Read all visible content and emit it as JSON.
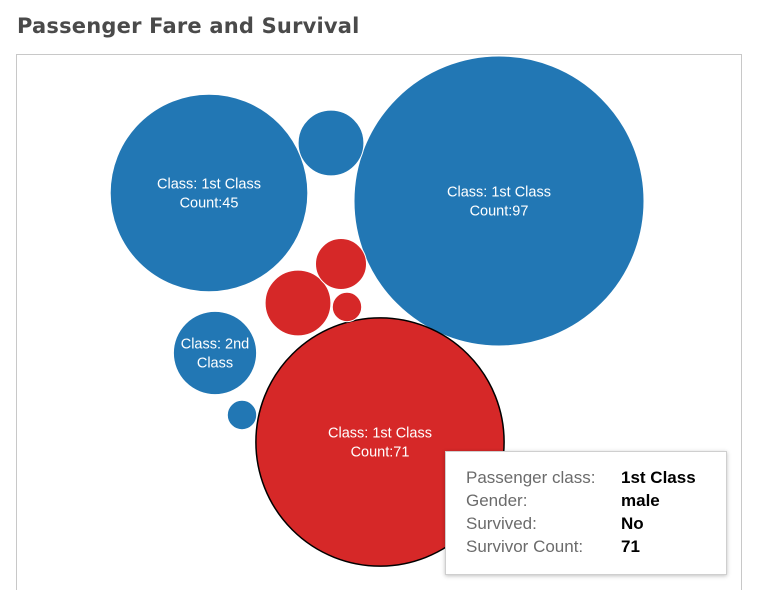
{
  "title": "Passenger Fare and Survival",
  "colors": {
    "blue": "#2277b4",
    "red": "#d62828",
    "highlight_stroke": "#000000"
  },
  "chart_data": {
    "type": "bubble",
    "title": "Passenger Fare and Survival",
    "color_legend": {
      "No": "#d62828",
      "Yes": "#2277b4"
    },
    "bubbles": [
      {
        "class": "1st Class",
        "survived": "Yes",
        "count": 97,
        "label": [
          "Class: 1st Class",
          "Count:97"
        ]
      },
      {
        "class": "1st Class",
        "survived": "No",
        "count": 71,
        "label": [
          "Class: 1st Class",
          "Count:71"
        ],
        "highlighted": true
      },
      {
        "class": "1st Class",
        "survived": "Yes",
        "count": 45,
        "label": [
          "Class: 1st Class",
          "Count:45"
        ]
      },
      {
        "class": "2nd Class",
        "survived": "Yes",
        "count": 8,
        "label": [
          "Class: 2nd",
          "Class"
        ]
      },
      {
        "survived": "Yes",
        "count": 5,
        "label": []
      },
      {
        "survived": "No",
        "count": 5,
        "label": []
      },
      {
        "survived": "No",
        "count": 3,
        "label": []
      },
      {
        "survived": "No",
        "count": 1,
        "label": []
      },
      {
        "survived": "Yes",
        "count": 1,
        "label": []
      }
    ]
  },
  "tooltip": {
    "rows": [
      {
        "key": "Passenger class:",
        "value": "1st Class"
      },
      {
        "key": "Gender:",
        "value": "male"
      },
      {
        "key": "Survived:",
        "value": "No"
      },
      {
        "key": "Survivor Count:",
        "value": "71"
      }
    ]
  }
}
